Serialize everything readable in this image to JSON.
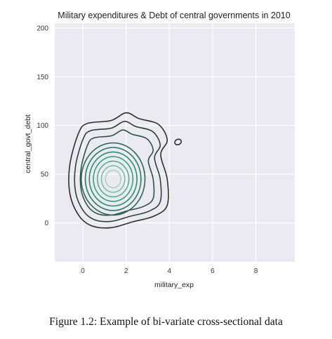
{
  "chart_data": {
    "type": "kde-contour",
    "title": "Military expenditures & Debt of central governments in 2010",
    "xlabel": "military_exp",
    "ylabel": "central_govt_debt",
    "xlim": [
      -1.3,
      9.8
    ],
    "ylim": [
      -40,
      205
    ],
    "x_ticks": [
      0,
      2,
      4,
      6,
      8
    ],
    "y_ticks": [
      0,
      50,
      100,
      150,
      200
    ],
    "grid": true,
    "background_color": "#eaeaf2",
    "grid_color": "#ffffff",
    "density_peak": {
      "x": 1.4,
      "y": 45
    },
    "secondary_mode": {
      "x": 4.4,
      "y": 83
    },
    "contour_colors": [
      "#2e2e2e",
      "#2f3f39",
      "#2f5247",
      "#2e6654",
      "#2c7a61",
      "#2b8e6e",
      "#3a9f7f",
      "#5aae92",
      "#7fbfa7",
      "#a6d2c1"
    ]
  },
  "caption": "Figure 1.2: Example of bi-variate cross-sectional data"
}
